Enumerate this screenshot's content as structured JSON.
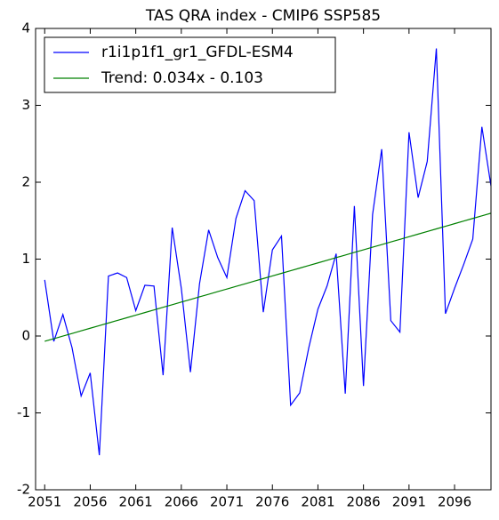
{
  "chart_data": {
    "type": "line",
    "title": "TAS QRA index - CMIP6 SSP585",
    "x": [
      2051,
      2052,
      2053,
      2054,
      2055,
      2056,
      2057,
      2058,
      2059,
      2060,
      2061,
      2062,
      2063,
      2064,
      2065,
      2066,
      2067,
      2068,
      2069,
      2070,
      2071,
      2072,
      2073,
      2074,
      2075,
      2076,
      2077,
      2078,
      2079,
      2080,
      2081,
      2082,
      2083,
      2084,
      2085,
      2086,
      2087,
      2088,
      2089,
      2090,
      2091,
      2092,
      2093,
      2094,
      2095,
      2096,
      2097,
      2098,
      2099,
      2100
    ],
    "series": [
      {
        "name": "r1i1p1f1_gr1_GFDL-ESM4",
        "color": "#0000ff",
        "values": [
          0.73,
          -0.07,
          0.28,
          -0.15,
          -0.78,
          -0.48,
          -1.55,
          0.78,
          0.82,
          0.76,
          0.33,
          0.66,
          0.65,
          -0.51,
          1.41,
          0.62,
          -0.47,
          0.68,
          1.38,
          1.02,
          0.76,
          1.53,
          1.89,
          1.76,
          0.31,
          1.12,
          1.3,
          -0.9,
          -0.74,
          -0.15,
          0.35,
          0.65,
          1.07,
          -0.75,
          1.69,
          -0.65,
          1.58,
          2.43,
          0.2,
          0.05,
          2.65,
          1.8,
          2.27,
          3.74,
          0.29,
          0.62,
          0.93,
          1.26,
          2.72,
          1.95
        ]
      },
      {
        "name": "Trend: 0.034x - 0.103",
        "color": "#008000",
        "values": [
          -0.069,
          -0.035,
          -0.001,
          0.033,
          0.067,
          0.101,
          0.135,
          0.169,
          0.203,
          0.237,
          0.271,
          0.305,
          0.339,
          0.373,
          0.407,
          0.441,
          0.475,
          0.509,
          0.543,
          0.577,
          0.611,
          0.645,
          0.679,
          0.713,
          0.747,
          0.781,
          0.815,
          0.849,
          0.883,
          0.917,
          0.951,
          0.985,
          1.019,
          1.053,
          1.087,
          1.121,
          1.155,
          1.189,
          1.223,
          1.257,
          1.291,
          1.325,
          1.359,
          1.393,
          1.427,
          1.461,
          1.495,
          1.529,
          1.563,
          1.597
        ]
      }
    ],
    "xlim": [
      2050,
      2100
    ],
    "xticks": [
      2051,
      2056,
      2061,
      2066,
      2071,
      2076,
      2081,
      2086,
      2091,
      2096
    ],
    "ylim": [
      -2,
      4
    ],
    "yticks": [
      -2,
      -1,
      0,
      1,
      2,
      3,
      4
    ],
    "legend": "upper left",
    "grid": false
  }
}
